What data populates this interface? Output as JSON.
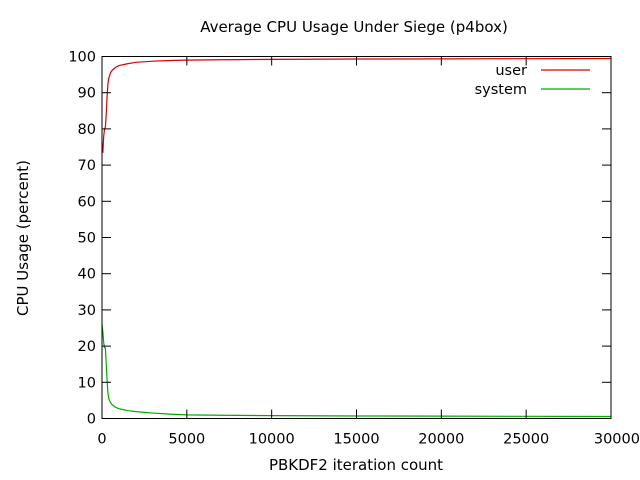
{
  "chart_data": {
    "type": "line",
    "title": "Average CPU Usage Under Siege (p4box)",
    "xlabel": "PBKDF2 iteration count",
    "ylabel": "CPU Usage (percent)",
    "xlim": [
      0,
      30000
    ],
    "ylim": [
      0,
      100
    ],
    "xticks": [
      0,
      5000,
      10000,
      15000,
      20000,
      25000,
      30000
    ],
    "yticks": [
      0,
      10,
      20,
      30,
      40,
      50,
      60,
      70,
      80,
      90,
      100
    ],
    "grid": false,
    "legend_position": "top-right",
    "series": [
      {
        "name": "user",
        "color": "#dd0000",
        "x": [
          0,
          50,
          100,
          150,
          200,
          250,
          300,
          350,
          400,
          500,
          600,
          800,
          1000,
          1500,
          2000,
          3000,
          4000,
          5000,
          7000,
          10000,
          15000,
          20000,
          25000,
          30000
        ],
        "y": [
          76,
          73.5,
          78,
          80,
          80.5,
          84,
          89,
          92.5,
          94,
          95.5,
          96.2,
          97,
          97.5,
          98,
          98.4,
          98.7,
          98.9,
          99.0,
          99.1,
          99.2,
          99.3,
          99.35,
          99.4,
          99.45
        ]
      },
      {
        "name": "system",
        "color": "#00aa00",
        "x": [
          0,
          50,
          100,
          150,
          200,
          250,
          300,
          350,
          400,
          500,
          600,
          800,
          1000,
          1500,
          2000,
          3000,
          4000,
          5000,
          7000,
          10000,
          15000,
          20000,
          25000,
          30000
        ],
        "y": [
          26,
          24,
          21,
          19.5,
          19.5,
          15,
          10.5,
          7,
          5.5,
          4.4,
          3.8,
          3.1,
          2.7,
          2.2,
          1.9,
          1.5,
          1.2,
          1.0,
          0.9,
          0.8,
          0.7,
          0.65,
          0.6,
          0.55
        ]
      }
    ]
  }
}
